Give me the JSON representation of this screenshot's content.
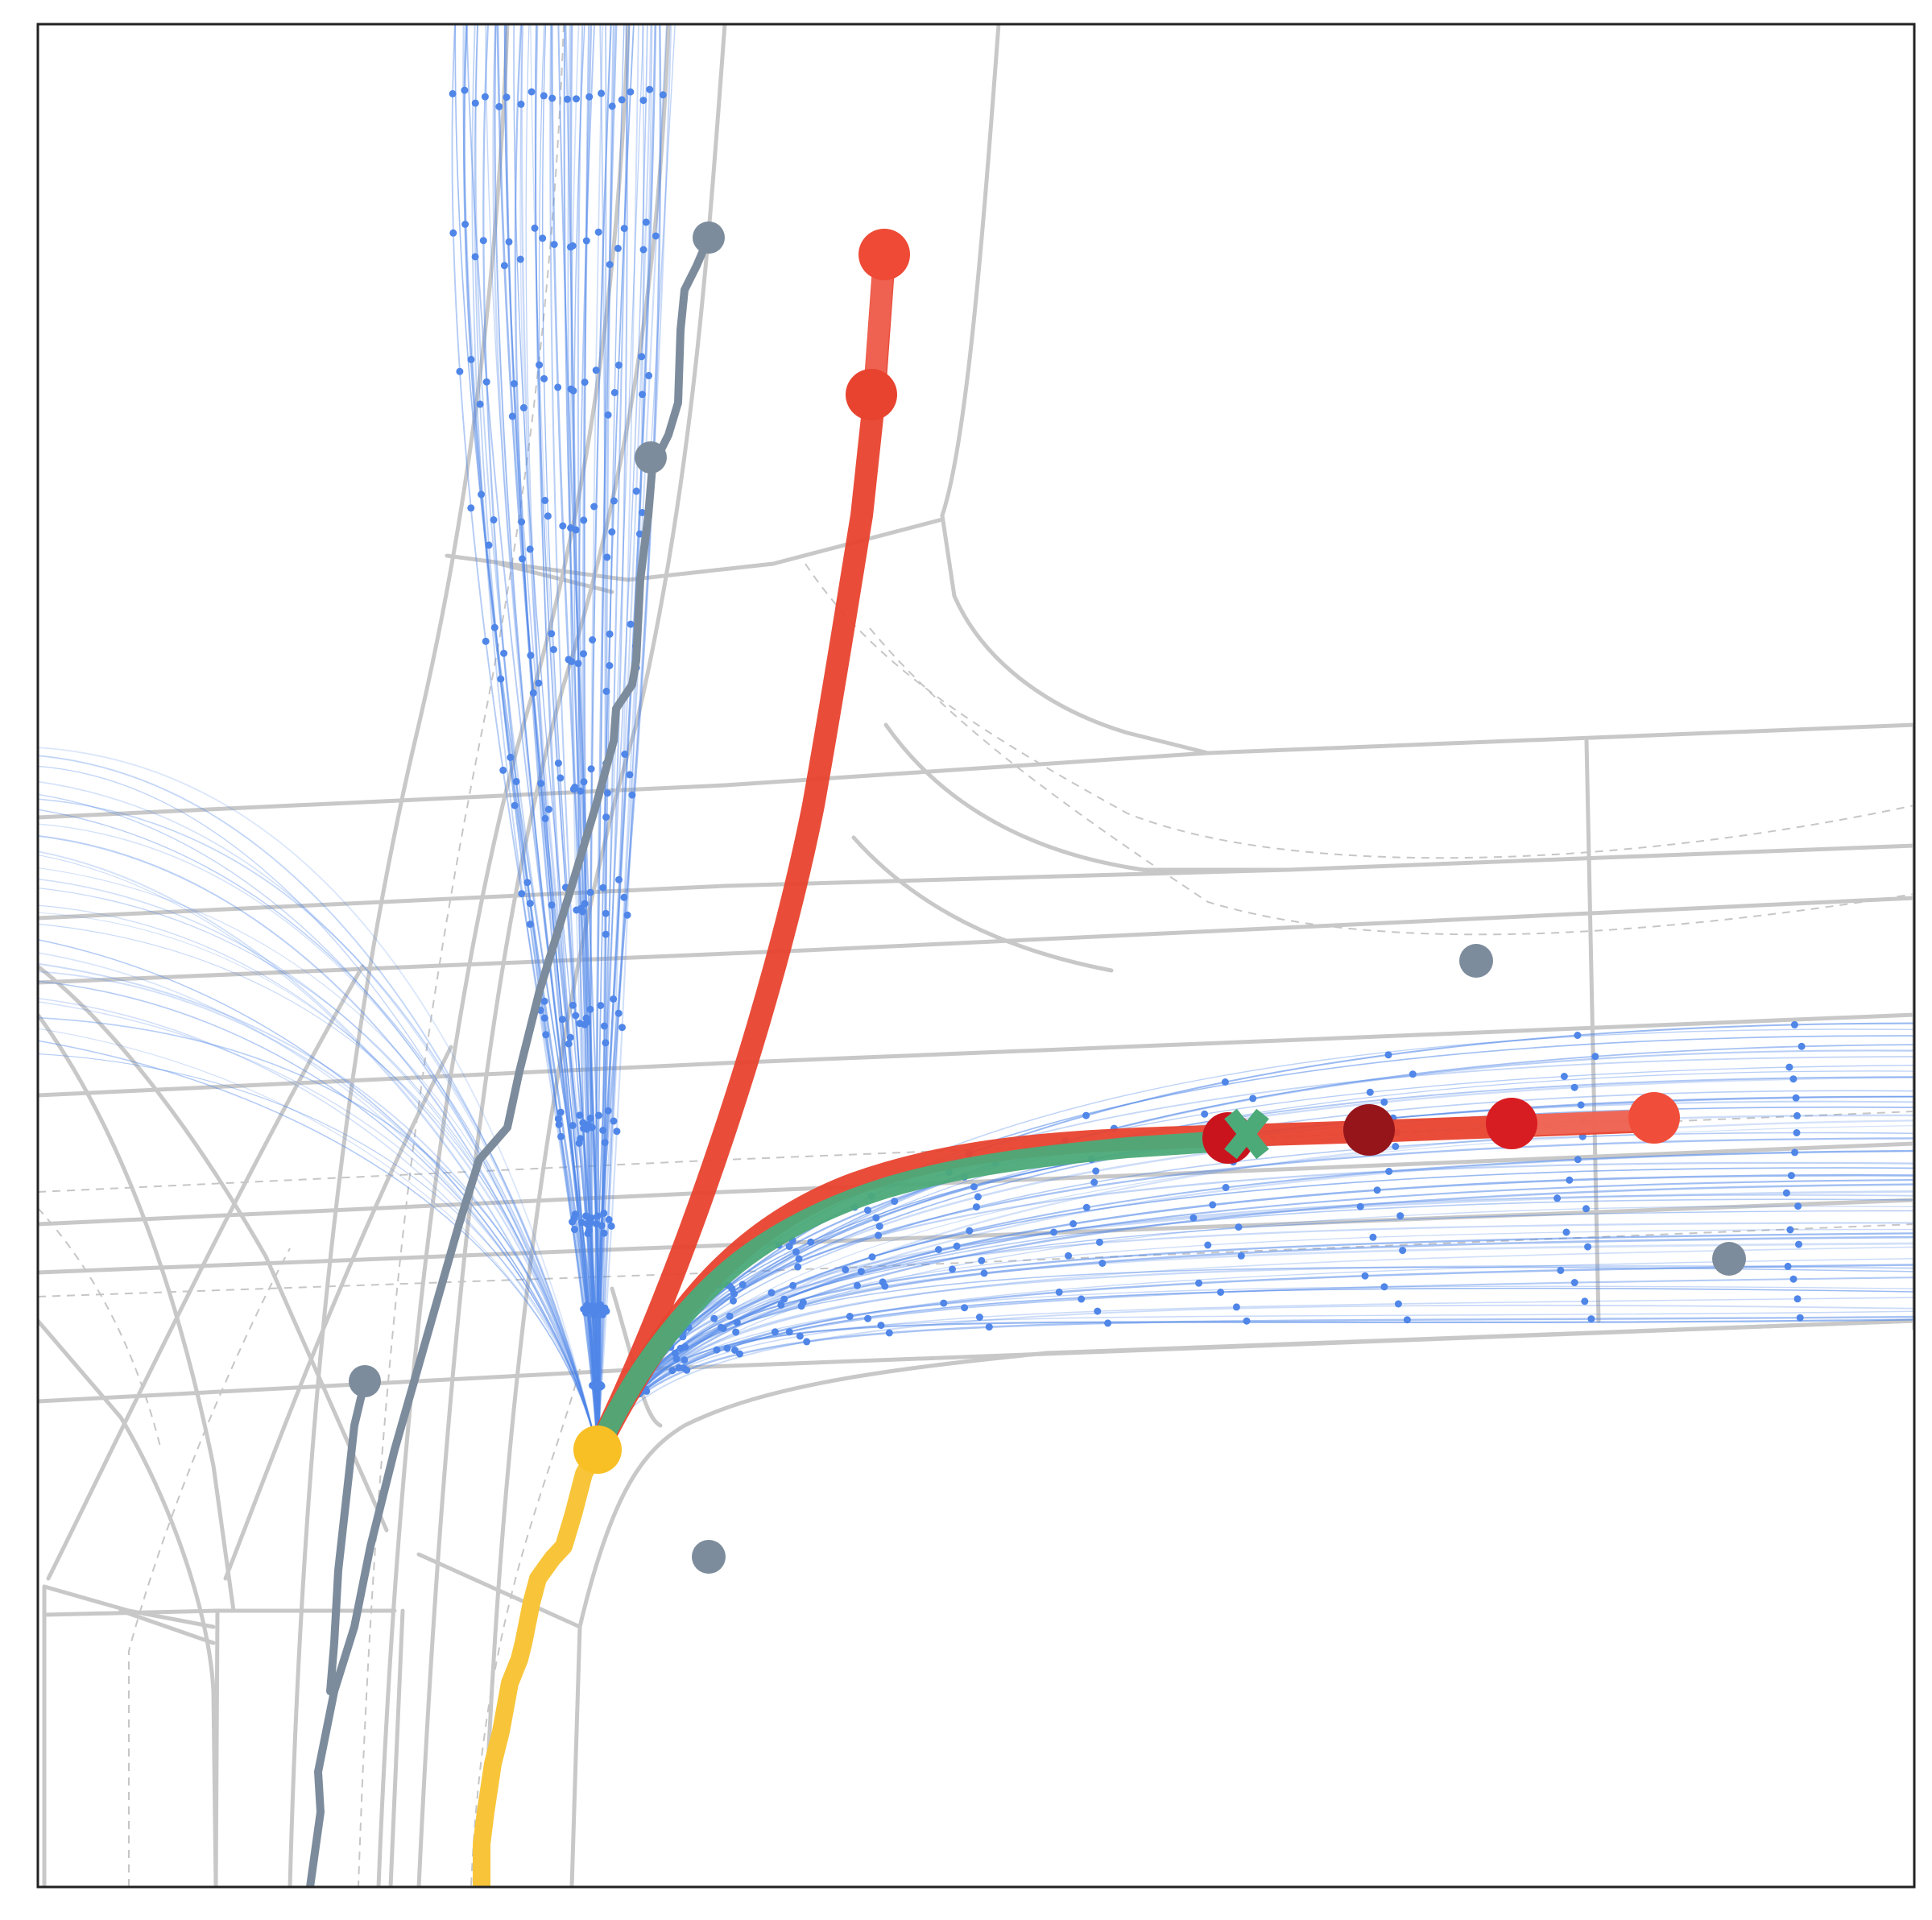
{
  "figure": {
    "kind": "trajectory-prediction map",
    "visible_text": []
  },
  "colors": {
    "frame": "#222222",
    "road": "#c8c8c8",
    "lane_dash": "#c0c0c0",
    "candidate": "#4f86e8",
    "other_agent": "#7d8c9c",
    "ego_history": "#f8c53a",
    "prediction_red": "#e8432f",
    "prediction_dark": "#96151b",
    "ground_truth": "#4caa78"
  },
  "legend": "none",
  "grid": false,
  "icons": [
    "ego-position-dot",
    "ground-truth-endpoint-x",
    "prediction-waypoint-circle"
  ]
}
